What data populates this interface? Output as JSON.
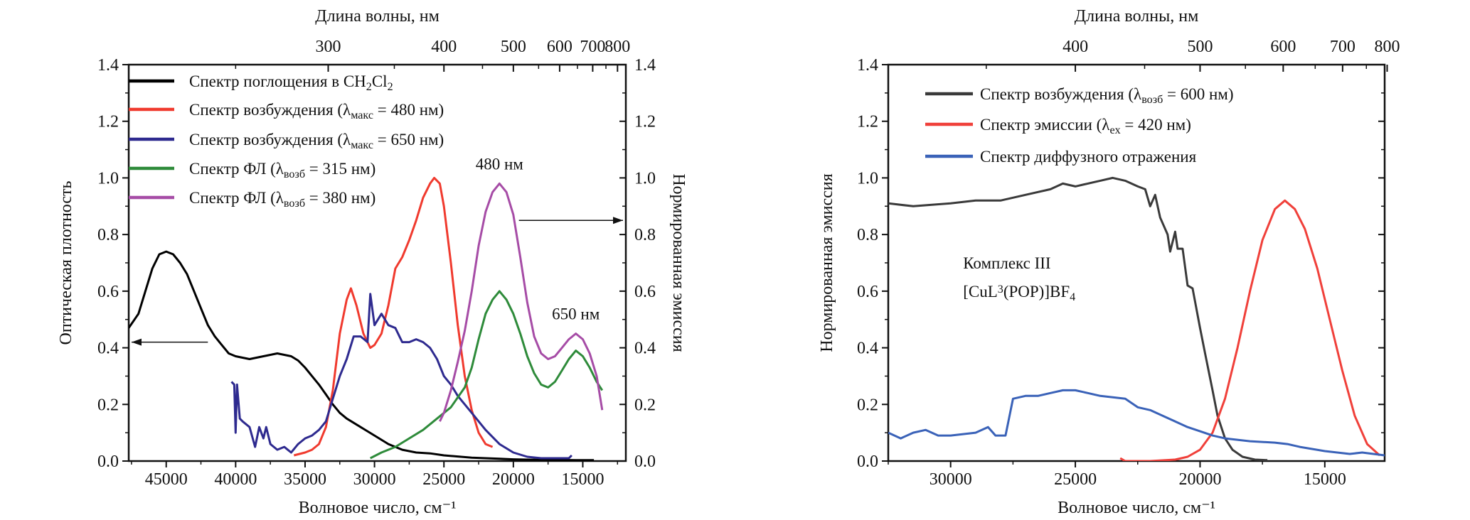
{
  "chart_data": [
    {
      "type": "line",
      "top_axis_title": "Длина волны, нм",
      "top_ticks": [
        300,
        400,
        500,
        600,
        700,
        800
      ],
      "xlabel": "Волновое число, см⁻¹",
      "ylabel": "Оптическая плотность",
      "ylabel_right": "Нормированная эмиссия",
      "xlim": [
        47700,
        11900
      ],
      "ylim": [
        0,
        1.4
      ],
      "x_ticks": [
        45000,
        40000,
        35000,
        30000,
        25000,
        20000,
        15000
      ],
      "y_ticks": [
        "0.0",
        "0.2",
        "0.4",
        "0.6",
        "0.8",
        "1.0",
        "1.2",
        "1.4"
      ],
      "legend_placement": "top-left",
      "annotations": [
        {
          "text": "480 нм",
          "x": 21000,
          "y": 1.03
        },
        {
          "text": "650 нм",
          "x": 15500,
          "y": 0.5
        }
      ],
      "arrows": [
        {
          "direction": "left",
          "from": 42000,
          "y": 0.42
        },
        {
          "direction": "right",
          "from": 19600,
          "y": 0.85
        }
      ],
      "series": [
        {
          "name": [
            {
              "t": "Спектр поглощения в CH"
            },
            {
              "t": "2",
              "sub": true
            },
            {
              "t": "Cl"
            },
            {
              "t": "2",
              "sub": true
            }
          ],
          "color": "#000000",
          "x": [
            47700,
            47000,
            46500,
            46000,
            45500,
            45000,
            44500,
            44000,
            43500,
            43000,
            42500,
            42000,
            41500,
            41000,
            40500,
            40000,
            39500,
            39000,
            38500,
            38000,
            37500,
            37000,
            36500,
            36000,
            35500,
            35000,
            34500,
            34000,
            33500,
            33000,
            32500,
            32000,
            31500,
            31000,
            30500,
            30000,
            29500,
            29000,
            28500,
            28000,
            27000,
            26000,
            25000,
            24000,
            23000,
            22000,
            21000,
            20000,
            19000,
            17000,
            15500,
            14200
          ],
          "y": [
            0.47,
            0.52,
            0.6,
            0.68,
            0.73,
            0.74,
            0.73,
            0.7,
            0.66,
            0.6,
            0.54,
            0.48,
            0.44,
            0.41,
            0.38,
            0.37,
            0.365,
            0.36,
            0.365,
            0.37,
            0.375,
            0.38,
            0.375,
            0.37,
            0.355,
            0.33,
            0.3,
            0.27,
            0.235,
            0.2,
            0.17,
            0.15,
            0.135,
            0.12,
            0.105,
            0.09,
            0.075,
            0.06,
            0.05,
            0.04,
            0.03,
            0.027,
            0.02,
            0.016,
            0.012,
            0.01,
            0.008,
            0.006,
            0.005,
            0.004,
            0.003,
            0.003
          ]
        },
        {
          "name": [
            {
              "t": "Спектр возбуждения (λ"
            },
            {
              "t": "макс",
              "sub": true
            },
            {
              "t": " = 480 нм)"
            }
          ],
          "color": "#f03a2e",
          "x": [
            35800,
            35000,
            34500,
            34000,
            33500,
            33000,
            32500,
            32000,
            31700,
            31300,
            30800,
            30300,
            30000,
            29500,
            29000,
            28500,
            28000,
            27500,
            27000,
            26500,
            26000,
            25700,
            25300,
            25000,
            24500,
            24000,
            23500,
            23000,
            22500,
            22000,
            21500
          ],
          "y": [
            0.02,
            0.03,
            0.04,
            0.06,
            0.12,
            0.25,
            0.45,
            0.57,
            0.61,
            0.55,
            0.45,
            0.4,
            0.41,
            0.45,
            0.55,
            0.68,
            0.72,
            0.78,
            0.85,
            0.93,
            0.98,
            1.0,
            0.98,
            0.9,
            0.7,
            0.48,
            0.3,
            0.18,
            0.1,
            0.06,
            0.05
          ]
        },
        {
          "name": [
            {
              "t": "Спектр возбуждения (λ"
            },
            {
              "t": "макс",
              "sub": true
            },
            {
              "t": " = 650 нм)"
            }
          ],
          "color": "#2e2a8f",
          "x": [
            40300,
            40100,
            40000,
            39900,
            39700,
            39500,
            39000,
            38600,
            38300,
            38000,
            37800,
            37500,
            37000,
            36500,
            36000,
            35500,
            35000,
            34500,
            34000,
            33500,
            33000,
            32500,
            32000,
            31500,
            31000,
            30500,
            30300,
            30000,
            29500,
            29000,
            28500,
            28000,
            27500,
            27000,
            26500,
            26000,
            25500,
            25000,
            24500,
            24000,
            23000,
            22000,
            21000,
            20000,
            19000,
            18000,
            17000,
            16000,
            15800
          ],
          "y": [
            0.28,
            0.27,
            0.1,
            0.27,
            0.15,
            0.14,
            0.12,
            0.05,
            0.12,
            0.08,
            0.12,
            0.06,
            0.04,
            0.05,
            0.03,
            0.06,
            0.08,
            0.09,
            0.11,
            0.14,
            0.22,
            0.3,
            0.36,
            0.44,
            0.44,
            0.42,
            0.59,
            0.48,
            0.52,
            0.48,
            0.47,
            0.42,
            0.42,
            0.43,
            0.42,
            0.4,
            0.36,
            0.3,
            0.27,
            0.23,
            0.17,
            0.11,
            0.06,
            0.03,
            0.015,
            0.01,
            0.01,
            0.01,
            0.02
          ]
        },
        {
          "name": [
            {
              "t": "Спектр ФЛ (λ"
            },
            {
              "t": "возб",
              "sub": true
            },
            {
              "t": " = 315 нм)"
            }
          ],
          "color": "#2e8b3a",
          "x": [
            30300,
            29500,
            28500,
            27500,
            26500,
            25500,
            24500,
            23500,
            23000,
            22500,
            22000,
            21500,
            21000,
            20500,
            20000,
            19500,
            19000,
            18500,
            18000,
            17500,
            17000,
            16500,
            16000,
            15500,
            15000,
            14500,
            14000,
            13600
          ],
          "y": [
            0.01,
            0.03,
            0.05,
            0.08,
            0.11,
            0.15,
            0.19,
            0.26,
            0.33,
            0.43,
            0.52,
            0.57,
            0.6,
            0.57,
            0.52,
            0.45,
            0.37,
            0.31,
            0.27,
            0.26,
            0.28,
            0.32,
            0.36,
            0.39,
            0.37,
            0.33,
            0.28,
            0.25
          ]
        },
        {
          "name": [
            {
              "t": "Спектр ФЛ (λ"
            },
            {
              "t": "возб",
              "sub": true
            },
            {
              "t": " = 380 нм)"
            }
          ],
          "color": "#a64ca6",
          "x": [
            25300,
            25000,
            24500,
            24000,
            23500,
            23000,
            22500,
            22000,
            21500,
            21000,
            20500,
            20000,
            19500,
            19000,
            18500,
            18000,
            17500,
            17000,
            16500,
            16000,
            15500,
            15000,
            14500,
            14000,
            13600
          ],
          "y": [
            0.14,
            0.17,
            0.25,
            0.35,
            0.46,
            0.6,
            0.76,
            0.88,
            0.95,
            0.98,
            0.95,
            0.87,
            0.72,
            0.56,
            0.44,
            0.38,
            0.36,
            0.37,
            0.4,
            0.43,
            0.45,
            0.43,
            0.38,
            0.3,
            0.18
          ]
        }
      ]
    },
    {
      "type": "line",
      "top_axis_title": "Длина волны, нм",
      "top_ticks": [
        400,
        500,
        600,
        700,
        800
      ],
      "xlabel": "Волновое число, см⁻¹",
      "ylabel": "Нормированная эмиссия",
      "xlim": [
        32500,
        12600
      ],
      "ylim": [
        0,
        1.4
      ],
      "x_ticks": [
        30000,
        25000,
        20000,
        15000
      ],
      "y_ticks": [
        "0.0",
        "0.2",
        "0.4",
        "0.6",
        "0.8",
        "1.0",
        "1.2",
        "1.4"
      ],
      "legend_placement": "top-left",
      "annotations": [
        {
          "text": "Комплекс III",
          "x": 29500,
          "y": 0.68
        },
        {
          "text": [
            {
              "t": "[CuL"
            },
            {
              "t": "3",
              "sup": true
            },
            {
              "t": "(POP)]BF"
            },
            {
              "t": "4",
              "sub": true
            }
          ],
          "x": 29500,
          "y": 0.58
        }
      ],
      "series": [
        {
          "name": [
            {
              "t": "Спектр возбуждения (λ"
            },
            {
              "t": "возб",
              "sub": true
            },
            {
              "t": " = 600 нм)"
            }
          ],
          "color": "#3a3a3a",
          "x": [
            32500,
            31500,
            30000,
            29000,
            28000,
            27000,
            26000,
            25500,
            25000,
            24500,
            24000,
            23500,
            23000,
            22500,
            22200,
            22000,
            21800,
            21600,
            21300,
            21200,
            21000,
            20900,
            20700,
            20500,
            20300,
            20000,
            19800,
            19500,
            19300,
            19000,
            18700,
            18300,
            17800,
            17300
          ],
          "y": [
            0.91,
            0.9,
            0.91,
            0.92,
            0.92,
            0.94,
            0.96,
            0.98,
            0.97,
            0.98,
            0.99,
            1.0,
            0.99,
            0.97,
            0.96,
            0.9,
            0.94,
            0.86,
            0.8,
            0.74,
            0.81,
            0.75,
            0.75,
            0.62,
            0.61,
            0.47,
            0.38,
            0.25,
            0.16,
            0.08,
            0.04,
            0.015,
            0.005,
            0.003
          ]
        },
        {
          "name": [
            {
              "t": "Спектр эмиссии (λ"
            },
            {
              "t": "ex",
              "sub": true
            },
            {
              "t": " = 420 нм)"
            }
          ],
          "color": "#f0403a",
          "x": [
            23200,
            23000,
            22000,
            21000,
            20500,
            20000,
            19500,
            19000,
            18500,
            18000,
            17500,
            17000,
            16600,
            16200,
            15800,
            15300,
            14800,
            14300,
            13800,
            13300,
            12800
          ],
          "y": [
            0.01,
            0.0,
            0.0,
            0.005,
            0.015,
            0.04,
            0.1,
            0.22,
            0.4,
            0.6,
            0.78,
            0.89,
            0.92,
            0.89,
            0.82,
            0.68,
            0.5,
            0.32,
            0.16,
            0.06,
            0.02
          ]
        },
        {
          "name": [
            {
              "t": "Спектр диффузного отражения"
            }
          ],
          "color": "#3a62b8",
          "x": [
            32500,
            32000,
            31500,
            31000,
            30500,
            30000,
            29000,
            28500,
            28200,
            27800,
            27500,
            27000,
            26500,
            26000,
            25500,
            25000,
            24500,
            24000,
            23000,
            22500,
            22000,
            21500,
            21000,
            20500,
            20000,
            19500,
            19000,
            18000,
            17000,
            16500,
            16000,
            15000,
            14000,
            13500,
            12600
          ],
          "y": [
            0.1,
            0.08,
            0.1,
            0.11,
            0.09,
            0.09,
            0.1,
            0.12,
            0.09,
            0.09,
            0.22,
            0.23,
            0.23,
            0.24,
            0.25,
            0.25,
            0.24,
            0.23,
            0.22,
            0.19,
            0.18,
            0.16,
            0.14,
            0.12,
            0.105,
            0.09,
            0.08,
            0.07,
            0.065,
            0.06,
            0.05,
            0.035,
            0.025,
            0.03,
            0.02
          ]
        }
      ]
    }
  ]
}
